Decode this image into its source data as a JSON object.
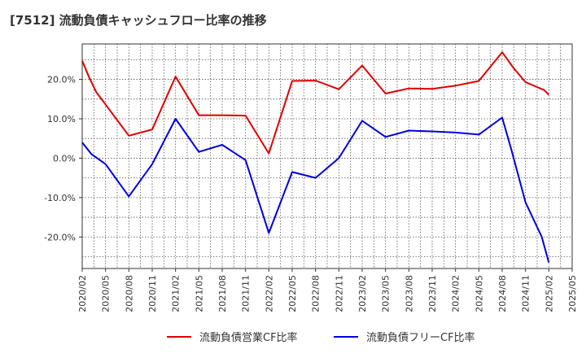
{
  "chart_data": {
    "type": "line",
    "title": "[7512]  流動負債キャッシュフロー比率の推移",
    "xlabel": "",
    "ylabel": "",
    "x": [
      "2020/02",
      "2020/05",
      "2020/08",
      "2020/11",
      "2021/02",
      "2021/05",
      "2021/08",
      "2021/11",
      "2022/02",
      "2022/05",
      "2022/08",
      "2022/11",
      "2023/02",
      "2023/05",
      "2023/08",
      "2023/11",
      "2024/02",
      "2024/05",
      "2024/08",
      "2024/11",
      "2025/02",
      "2025/05"
    ],
    "ylim": [
      -28,
      29
    ],
    "yticks": [
      -20,
      -10,
      0,
      10,
      20
    ],
    "ytick_labels": [
      "-20.0%",
      "-10.0%",
      "0.0%",
      "10.0%",
      "20.0%"
    ],
    "grid": true,
    "legend_position": "bottom",
    "series": [
      {
        "name": "流動負債営業CF比率",
        "color": "#dd0000",
        "points": [
          [
            0,
            24.7
          ],
          [
            0.3,
            20.5
          ],
          [
            0.6,
            16.8
          ],
          [
            2,
            5.7
          ],
          [
            3,
            7.3
          ],
          [
            4,
            20.7
          ],
          [
            5,
            10.9
          ],
          [
            6,
            10.9
          ],
          [
            7,
            10.8
          ],
          [
            8,
            1.2
          ],
          [
            9,
            19.6
          ],
          [
            10,
            19.7
          ],
          [
            11,
            17.5
          ],
          [
            12,
            23.5
          ],
          [
            13,
            16.4
          ],
          [
            14,
            17.7
          ],
          [
            15,
            17.6
          ],
          [
            16,
            18.4
          ],
          [
            17,
            19.6
          ],
          [
            18,
            26.9
          ],
          [
            18.5,
            22.8
          ],
          [
            19,
            19.3
          ],
          [
            19.8,
            17.3
          ],
          [
            20,
            16.1
          ]
        ]
      },
      {
        "name": "流動負債フリーCF比率",
        "color": "#0000dd",
        "points": [
          [
            0,
            4.0
          ],
          [
            0.4,
            1.0
          ],
          [
            1,
            -1.5
          ],
          [
            2,
            -9.7
          ],
          [
            3,
            -1.5
          ],
          [
            4,
            10.0
          ],
          [
            5,
            1.6
          ],
          [
            6,
            3.4
          ],
          [
            7,
            -0.5
          ],
          [
            8,
            -19.0
          ],
          [
            9,
            -3.5
          ],
          [
            10,
            -5.0
          ],
          [
            11,
            0.0
          ],
          [
            12,
            9.5
          ],
          [
            13,
            5.4
          ],
          [
            14,
            7.0
          ],
          [
            15,
            6.8
          ],
          [
            16,
            6.5
          ],
          [
            17,
            6.0
          ],
          [
            18,
            10.3
          ],
          [
            18.4,
            2.0
          ],
          [
            19,
            -11.2
          ],
          [
            19.7,
            -20.0
          ],
          [
            20,
            -26.5
          ]
        ]
      }
    ]
  }
}
